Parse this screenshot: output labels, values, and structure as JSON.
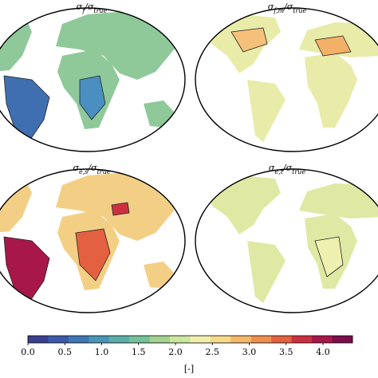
{
  "panels": [
    {
      "title": [
        "σ",
        "f",
        "/σ",
        "true"
      ]
    },
    {
      "title": [
        "σ",
        "f,m",
        "/σ",
        "true"
      ]
    },
    {
      "title": [
        "σ",
        "e,s",
        "/σ",
        "true"
      ]
    },
    {
      "title": [
        "σ",
        "e,t",
        "/σ",
        "true"
      ]
    }
  ],
  "colorbar": {
    "lim": [
      0,
      4.4
    ],
    "ticks": [
      {
        "value": 0,
        "label": "0.0"
      },
      {
        "value": 0.5,
        "label": "0.5"
      },
      {
        "value": 1,
        "label": "1.0"
      },
      {
        "value": 1.5,
        "label": "1.5"
      },
      {
        "value": 2,
        "label": "2.0"
      },
      {
        "value": 2.5,
        "label": "2.5"
      },
      {
        "value": 3,
        "label": "3.0"
      },
      {
        "value": 3.5,
        "label": "3.5"
      },
      {
        "value": 4,
        "label": "4.0"
      }
    ],
    "label": "[-]",
    "colormap": [
      "#3a3f8f",
      "#3d5aa8",
      "#3f77b5",
      "#4a95b5",
      "#5aaea8",
      "#76c09a",
      "#a3d190",
      "#cde6a0",
      "#f0efb0",
      "#f7d98a",
      "#f4b86a",
      "#ee8f50",
      "#e36140",
      "#cc3040",
      "#a8174a",
      "#7c0c4b"
    ]
  }
}
